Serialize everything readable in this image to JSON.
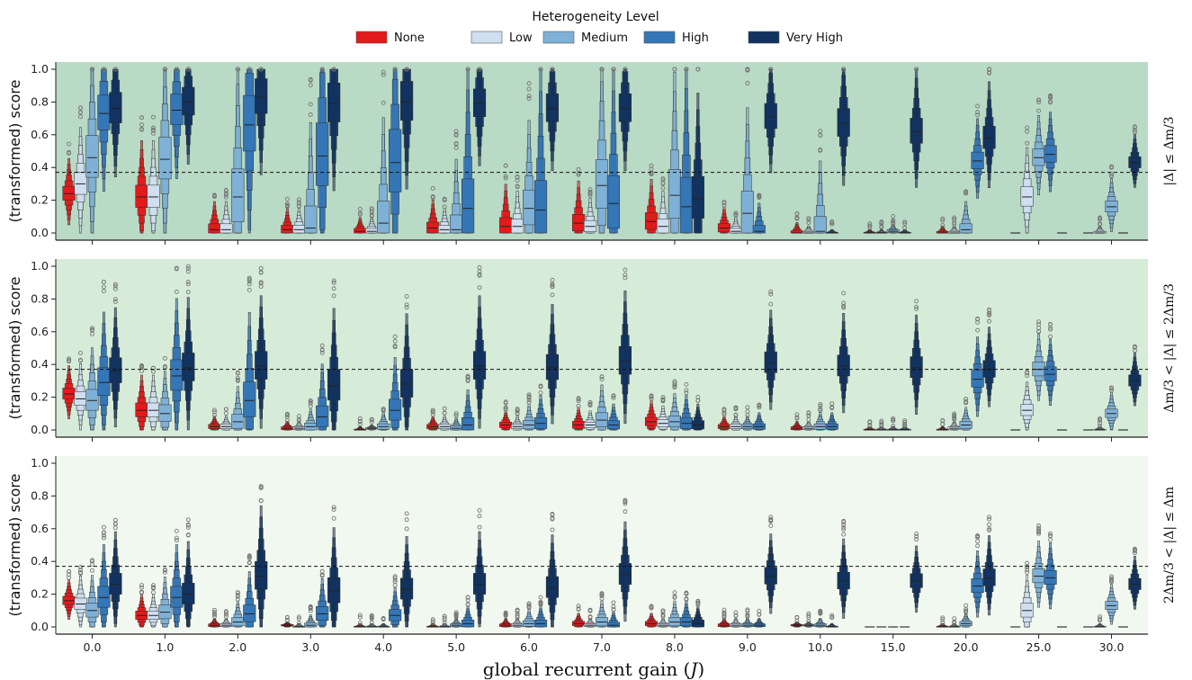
{
  "chart_data": {
    "type": "boxen",
    "legend": {
      "title": "Heterogeneity Level",
      "placement": "top-center",
      "entries": [
        "None",
        "Low",
        "Medium",
        "High",
        "Very High"
      ]
    },
    "colors": {
      "None": "#e31a1c",
      "Low": "#cfdff0",
      "Medium": "#7fb1d6",
      "High": "#3476b6",
      "Very High": "#12335f"
    },
    "categories": [
      "0.0",
      "1.0",
      "2.0",
      "3.0",
      "4.0",
      "5.0",
      "6.0",
      "7.0",
      "8.0",
      "9.0",
      "10.0",
      "15.0",
      "20.0",
      "25.0",
      "30.0"
    ],
    "xlabel": "global recurrent gain ($J$)",
    "ylabel": "(transformed) score",
    "ylim": [
      0,
      1.05
    ],
    "yticks": [
      "0.0",
      "0.2",
      "0.4",
      "0.6",
      "0.8",
      "1.0"
    ],
    "reference_line": 0.37,
    "panels": [
      {
        "row_label": "|Δ| ≤ Δm/3",
        "background": "#b9dac5",
        "medians": [
          [
            0.24,
            0.3,
            0.46,
            0.73,
            0.76
          ],
          [
            0.22,
            0.22,
            0.45,
            0.75,
            0.8
          ],
          [
            0.02,
            0.02,
            0.22,
            0.66,
            0.83
          ],
          [
            0.02,
            0.02,
            0.03,
            0.47,
            0.79
          ],
          [
            0.01,
            0.01,
            0.06,
            0.43,
            0.8
          ],
          [
            0.03,
            0.02,
            0.02,
            0.15,
            0.79
          ],
          [
            0.04,
            0.04,
            0.15,
            0.14,
            0.76
          ],
          [
            0.06,
            0.04,
            0.29,
            0.18,
            0.76
          ],
          [
            0.07,
            0.04,
            0.23,
            0.16,
            0.21
          ],
          [
            0.03,
            0.01,
            0.12,
            0.01,
            0.71
          ],
          [
            0.0,
            0.0,
            0.01,
            0.0,
            0.67
          ],
          [
            0.0,
            0.0,
            0.01,
            0.0,
            0.62
          ],
          [
            0.0,
            0.0,
            0.02,
            0.44,
            0.58
          ],
          [
            0.0,
            0.22,
            0.46,
            0.48,
            0.0
          ],
          [
            0.0,
            0.0,
            0.16,
            0.0,
            0.43
          ]
        ],
        "spreads": [
          [
            0.1,
            0.16,
            0.3,
            0.25,
            0.22
          ],
          [
            0.16,
            0.16,
            0.3,
            0.22,
            0.2
          ],
          [
            0.08,
            0.08,
            0.38,
            0.4,
            0.25
          ],
          [
            0.06,
            0.06,
            0.3,
            0.45,
            0.28
          ],
          [
            0.04,
            0.04,
            0.3,
            0.45,
            0.28
          ],
          [
            0.08,
            0.06,
            0.2,
            0.4,
            0.2
          ],
          [
            0.12,
            0.1,
            0.25,
            0.4,
            0.2
          ],
          [
            0.12,
            0.08,
            0.35,
            0.38,
            0.2
          ],
          [
            0.12,
            0.1,
            0.35,
            0.4,
            0.3
          ],
          [
            0.06,
            0.04,
            0.3,
            0.08,
            0.18
          ],
          [
            0.03,
            0.02,
            0.2,
            0.01,
            0.2
          ],
          [
            0.01,
            0.01,
            0.02,
            0.01,
            0.18
          ],
          [
            0.02,
            0.02,
            0.08,
            0.12,
            0.16
          ],
          [
            0.0,
            0.14,
            0.12,
            0.12,
            0.0
          ],
          [
            0.0,
            0.02,
            0.08,
            0.0,
            0.08
          ]
        ]
      },
      {
        "row_label": "Δm/3 < |Δ| ≤ 2Δm/3",
        "background": "#d6ecd8",
        "medians": [
          [
            0.22,
            0.19,
            0.18,
            0.29,
            0.36
          ],
          [
            0.12,
            0.12,
            0.1,
            0.33,
            0.38
          ],
          [
            0.02,
            0.02,
            0.05,
            0.18,
            0.39
          ],
          [
            0.01,
            0.01,
            0.02,
            0.08,
            0.27
          ],
          [
            0.0,
            0.01,
            0.02,
            0.12,
            0.28
          ],
          [
            0.02,
            0.02,
            0.01,
            0.03,
            0.39
          ],
          [
            0.03,
            0.02,
            0.03,
            0.04,
            0.38
          ],
          [
            0.03,
            0.03,
            0.06,
            0.03,
            0.42
          ],
          [
            0.05,
            0.04,
            0.05,
            0.04,
            0.03
          ],
          [
            0.02,
            0.02,
            0.02,
            0.02,
            0.41
          ],
          [
            0.01,
            0.01,
            0.02,
            0.02,
            0.39
          ],
          [
            0.0,
            0.0,
            0.0,
            0.0,
            0.38
          ],
          [
            0.0,
            0.01,
            0.03,
            0.31,
            0.37
          ],
          [
            0.0,
            0.12,
            0.37,
            0.34,
            0.0
          ],
          [
            0.0,
            0.0,
            0.1,
            0.0,
            0.3
          ]
        ],
        "spreads": [
          [
            0.08,
            0.1,
            0.15,
            0.2,
            0.18
          ],
          [
            0.1,
            0.1,
            0.12,
            0.22,
            0.2
          ],
          [
            0.03,
            0.03,
            0.1,
            0.25,
            0.2
          ],
          [
            0.02,
            0.02,
            0.05,
            0.15,
            0.22
          ],
          [
            0.01,
            0.01,
            0.04,
            0.15,
            0.2
          ],
          [
            0.03,
            0.03,
            0.03,
            0.1,
            0.2
          ],
          [
            0.04,
            0.03,
            0.06,
            0.08,
            0.18
          ],
          [
            0.05,
            0.04,
            0.1,
            0.06,
            0.2
          ],
          [
            0.06,
            0.05,
            0.08,
            0.08,
            0.06
          ],
          [
            0.03,
            0.03,
            0.03,
            0.04,
            0.15
          ],
          [
            0.02,
            0.02,
            0.04,
            0.04,
            0.15
          ],
          [
            0.01,
            0.01,
            0.01,
            0.01,
            0.15
          ],
          [
            0.01,
            0.02,
            0.05,
            0.12,
            0.12
          ],
          [
            0.0,
            0.08,
            0.1,
            0.1,
            0.0
          ],
          [
            0.0,
            0.01,
            0.06,
            0.0,
            0.08
          ]
        ]
      },
      {
        "row_label": "2Δm/3 < |Δ| ≤ Δm",
        "background": "#f1f8ef",
        "medians": [
          [
            0.16,
            0.14,
            0.1,
            0.18,
            0.26
          ],
          [
            0.07,
            0.07,
            0.09,
            0.18,
            0.2
          ],
          [
            0.01,
            0.01,
            0.03,
            0.08,
            0.31
          ],
          [
            0.01,
            0.0,
            0.01,
            0.08,
            0.22
          ],
          [
            0.0,
            0.0,
            0.0,
            0.07,
            0.23
          ],
          [
            0.0,
            0.0,
            0.01,
            0.02,
            0.26
          ],
          [
            0.01,
            0.01,
            0.02,
            0.02,
            0.24
          ],
          [
            0.02,
            0.01,
            0.03,
            0.01,
            0.32
          ],
          [
            0.02,
            0.01,
            0.03,
            0.03,
            0.02
          ],
          [
            0.01,
            0.01,
            0.01,
            0.01,
            0.31
          ],
          [
            0.01,
            0.01,
            0.01,
            0.0,
            0.28
          ],
          [
            0.0,
            0.0,
            0.0,
            0.0,
            0.28
          ],
          [
            0.0,
            0.0,
            0.02,
            0.25,
            0.3
          ],
          [
            0.0,
            0.1,
            0.31,
            0.3,
            0.0
          ],
          [
            0.0,
            0.0,
            0.13,
            0.0,
            0.26
          ]
        ],
        "spreads": [
          [
            0.06,
            0.08,
            0.1,
            0.15,
            0.15
          ],
          [
            0.06,
            0.06,
            0.1,
            0.15,
            0.15
          ],
          [
            0.02,
            0.02,
            0.06,
            0.12,
            0.2
          ],
          [
            0.01,
            0.01,
            0.03,
            0.1,
            0.18
          ],
          [
            0.01,
            0.01,
            0.01,
            0.08,
            0.15
          ],
          [
            0.01,
            0.01,
            0.02,
            0.05,
            0.15
          ],
          [
            0.02,
            0.02,
            0.04,
            0.05,
            0.15
          ],
          [
            0.03,
            0.02,
            0.06,
            0.04,
            0.15
          ],
          [
            0.03,
            0.02,
            0.06,
            0.06,
            0.05
          ],
          [
            0.02,
            0.02,
            0.02,
            0.02,
            0.12
          ],
          [
            0.01,
            0.01,
            0.02,
            0.01,
            0.12
          ],
          [
            0.0,
            0.0,
            0.0,
            0.0,
            0.1
          ],
          [
            0.01,
            0.01,
            0.03,
            0.1,
            0.12
          ],
          [
            0.0,
            0.1,
            0.1,
            0.1,
            0.0
          ],
          [
            0.0,
            0.01,
            0.06,
            0.0,
            0.08
          ]
        ]
      }
    ]
  }
}
